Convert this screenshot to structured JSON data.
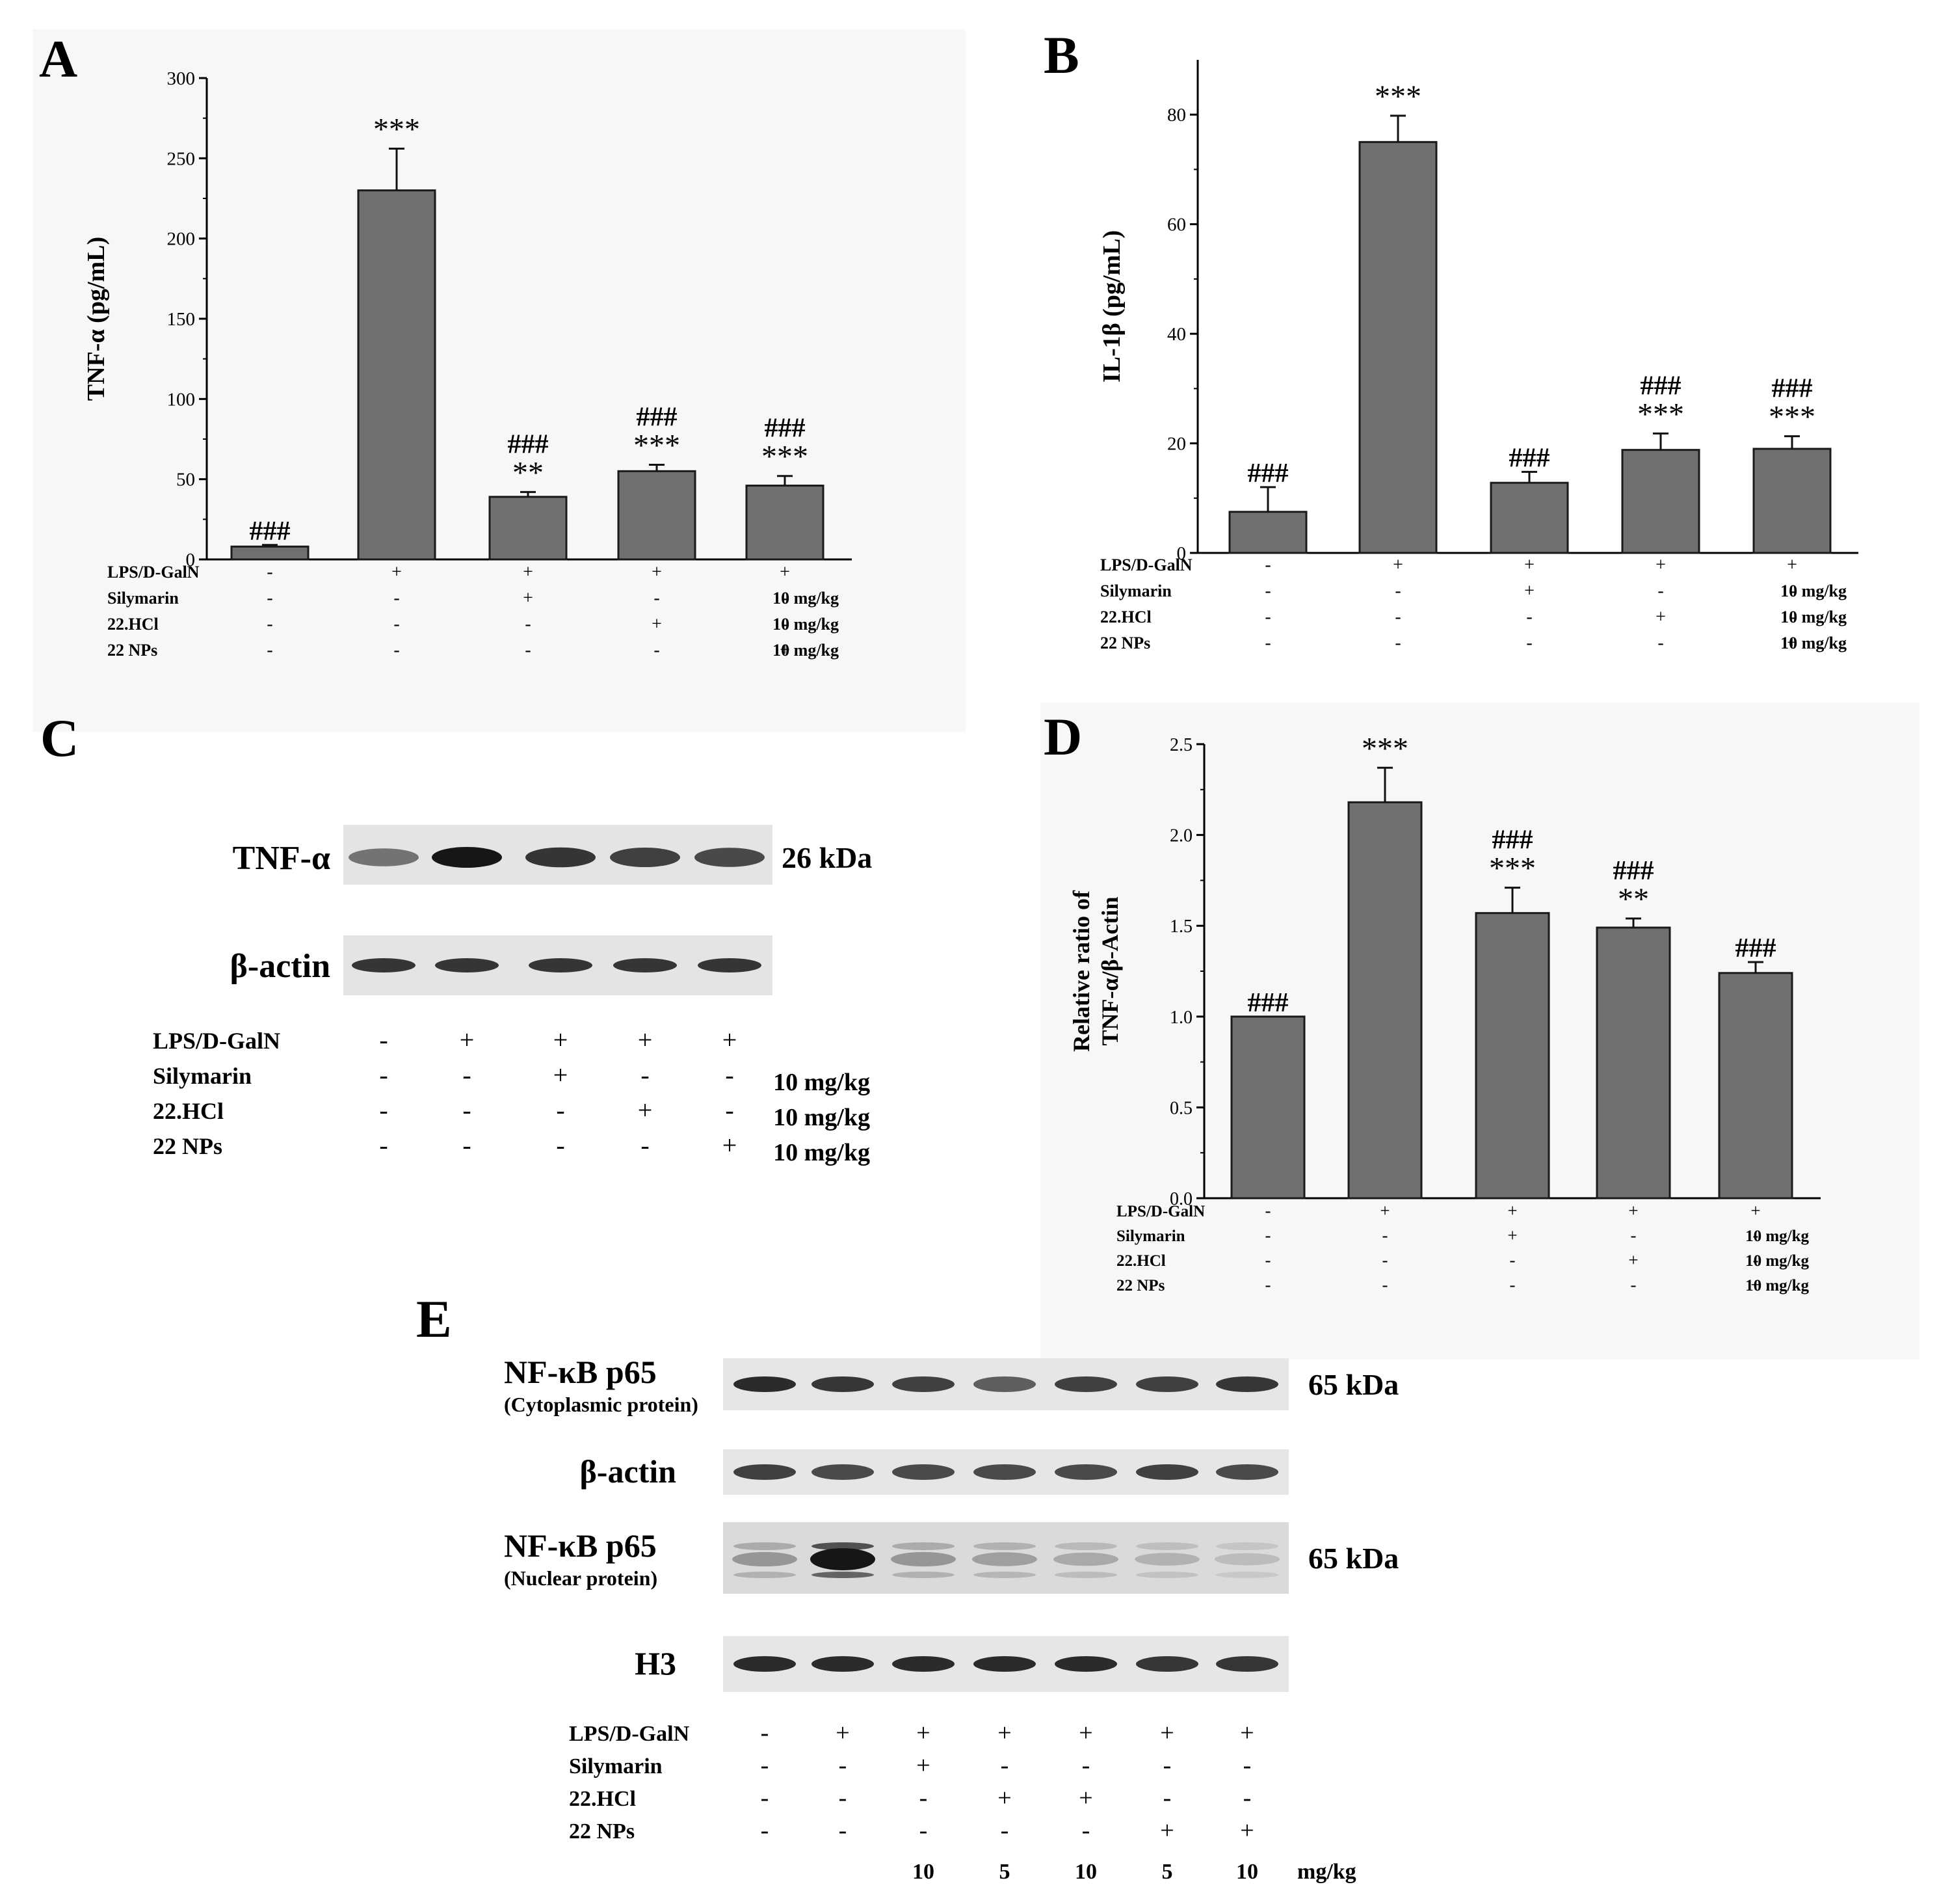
{
  "colors": {
    "bar": "#707070",
    "band": "#161616",
    "axis": "#000000",
    "panel_bg": "#f7f7f7"
  },
  "panels": {
    "A": {
      "letter": "A"
    },
    "B": {
      "letter": "B"
    },
    "C": {
      "letter": "C"
    },
    "D": {
      "letter": "D"
    },
    "E": {
      "letter": "E"
    }
  },
  "chart_data": [
    {
      "panel": "A",
      "type": "bar",
      "ylabel": "TNF-α (pg/mL)",
      "ylim": [
        0,
        300
      ],
      "yticks": [
        "0",
        "50",
        "100",
        "150",
        "200",
        "250",
        "300"
      ],
      "values": [
        8,
        230,
        39,
        55,
        46
      ],
      "errors": [
        1,
        26,
        3,
        4,
        6
      ],
      "stars": [
        "",
        "***",
        "**",
        "***",
        "***"
      ],
      "hashes": [
        "###",
        "",
        "###",
        "###",
        "###"
      ],
      "treatment_rows": [
        {
          "label": "LPS/D-GalN",
          "signs": [
            "-",
            "+",
            "+",
            "+",
            "+"
          ],
          "dose": ""
        },
        {
          "label": "Silymarin",
          "signs": [
            "-",
            "-",
            "+",
            "-",
            "-"
          ],
          "dose": "10 mg/kg"
        },
        {
          "label": "22.HCl",
          "signs": [
            "-",
            "-",
            "-",
            "+",
            "-"
          ],
          "dose": "10 mg/kg"
        },
        {
          "label": "22 NPs",
          "signs": [
            "-",
            "-",
            "-",
            "-",
            "+"
          ],
          "dose": "10 mg/kg"
        }
      ]
    },
    {
      "panel": "B",
      "type": "bar",
      "ylabel": "IL-1β (pg/mL)",
      "ylim": [
        0,
        90
      ],
      "yticks": [
        "0",
        "20",
        "40",
        "60",
        "80"
      ],
      "values": [
        7.5,
        75,
        12.8,
        18.8,
        19
      ],
      "errors": [
        4.5,
        4.8,
        2,
        3,
        2.3
      ],
      "stars": [
        "",
        "***",
        "",
        "***",
        "***"
      ],
      "hashes": [
        "###",
        "",
        "###",
        "###",
        "###"
      ],
      "treatment_rows": [
        {
          "label": "LPS/D-GalN",
          "signs": [
            "-",
            "+",
            "+",
            "+",
            "+"
          ],
          "dose": ""
        },
        {
          "label": "Silymarin",
          "signs": [
            "-",
            "-",
            "+",
            "-",
            "-"
          ],
          "dose": "10 mg/kg"
        },
        {
          "label": "22.HCl",
          "signs": [
            "-",
            "-",
            "-",
            "+",
            "-"
          ],
          "dose": "10 mg/kg"
        },
        {
          "label": "22 NPs",
          "signs": [
            "-",
            "-",
            "-",
            "-",
            "+"
          ],
          "dose": "10 mg/kg"
        }
      ]
    },
    {
      "panel": "D",
      "type": "bar",
      "ylabel_lines": [
        "Relative ratio of",
        "TNF-α/β-Actin"
      ],
      "ylim": [
        0,
        2.5
      ],
      "yticks": [
        "0.0",
        "0.5",
        "1.0",
        "1.5",
        "2.0",
        "2.5"
      ],
      "values": [
        1.0,
        2.18,
        1.57,
        1.49,
        1.24
      ],
      "errors": [
        0,
        0.19,
        0.14,
        0.05,
        0.06
      ],
      "stars": [
        "",
        "***",
        "***",
        "**",
        ""
      ],
      "hashes": [
        "###",
        "",
        "###",
        "###",
        "###"
      ],
      "treatment_rows": [
        {
          "label": "LPS/D-GalN",
          "signs": [
            "-",
            "+",
            "+",
            "+",
            "+"
          ],
          "dose": ""
        },
        {
          "label": "Silymarin",
          "signs": [
            "-",
            "-",
            "+",
            "-",
            "-"
          ],
          "dose": "10 mg/kg"
        },
        {
          "label": "22.HCl",
          "signs": [
            "-",
            "-",
            "-",
            "+",
            "-"
          ],
          "dose": "10 mg/kg"
        },
        {
          "label": "22 NPs",
          "signs": [
            "-",
            "-",
            "-",
            "-",
            "+"
          ],
          "dose": "10 mg/kg"
        }
      ]
    }
  ],
  "blot_C": {
    "bands": [
      {
        "label": "TNF-α",
        "size": "26 kDa",
        "intensity": [
          0.55,
          1.0,
          0.85,
          0.8,
          0.75
        ]
      },
      {
        "label": "β-actin",
        "size": "",
        "intensity": [
          0.85,
          0.85,
          0.85,
          0.85,
          0.85
        ]
      }
    ],
    "treatment_rows": [
      {
        "label": "LPS/D-GalN",
        "signs": [
          "-",
          "+",
          "+",
          "+",
          "+"
        ],
        "dose": ""
      },
      {
        "label": "Silymarin",
        "signs": [
          "-",
          "-",
          "+",
          "-",
          "-"
        ],
        "dose": "10 mg/kg"
      },
      {
        "label": "22.HCl",
        "signs": [
          "-",
          "-",
          "-",
          "+",
          "-"
        ],
        "dose": "10 mg/kg"
      },
      {
        "label": "22 NPs",
        "signs": [
          "-",
          "-",
          "-",
          "-",
          "+"
        ],
        "dose": "10 mg/kg"
      }
    ]
  },
  "blot_E": {
    "bands": [
      {
        "label": "NF-κB p65",
        "sub": "(Cytoplasmic protein)",
        "size": "65 kDa",
        "intensity": [
          0.9,
          0.85,
          0.8,
          0.65,
          0.8,
          0.8,
          0.85
        ]
      },
      {
        "label": "β-actin",
        "sub": "",
        "size": "",
        "intensity": [
          0.8,
          0.75,
          0.75,
          0.75,
          0.75,
          0.8,
          0.75
        ]
      },
      {
        "label": "NF-κB p65",
        "sub": "(Nuclear protein)",
        "size": "65 kDa",
        "intensity": [
          0.35,
          1.0,
          0.35,
          0.3,
          0.25,
          0.2,
          0.15
        ]
      },
      {
        "label": "H3",
        "sub": "",
        "size": "",
        "intensity": [
          0.9,
          0.9,
          0.9,
          0.9,
          0.9,
          0.85,
          0.85
        ]
      }
    ],
    "treatment_rows": [
      {
        "label": "LPS/D-GalN",
        "signs": [
          "-",
          "+",
          "+",
          "+",
          "+",
          "+",
          "+"
        ]
      },
      {
        "label": "Silymarin",
        "signs": [
          "-",
          "-",
          "+",
          "-",
          "-",
          "-",
          "-"
        ]
      },
      {
        "label": "22.HCl",
        "signs": [
          "-",
          "-",
          "-",
          "+",
          "+",
          "-",
          "-"
        ]
      },
      {
        "label": "22 NPs",
        "signs": [
          "-",
          "-",
          "-",
          "-",
          "-",
          "+",
          "+"
        ]
      }
    ],
    "doses": [
      "",
      "",
      "10",
      "5",
      "10",
      "5",
      "10"
    ],
    "dose_unit": "mg/kg"
  }
}
